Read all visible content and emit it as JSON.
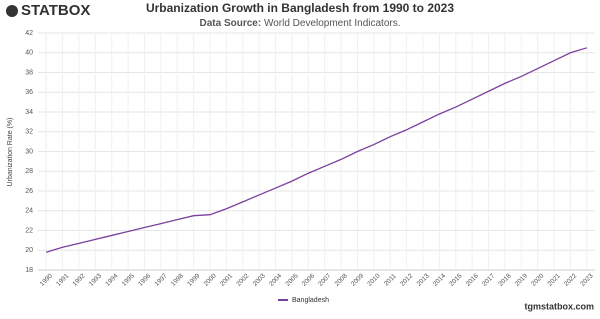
{
  "brand": "STATBOX",
  "footer": "tgmstatbox.com",
  "chart_data": {
    "type": "line",
    "title": "Urbanization Growth in Bangladesh from 1990 to 2023",
    "subtitle_label": "Data Source:",
    "subtitle": "World Development Indicators.",
    "y_label": "Urbanization Rate (%)",
    "categories": [
      "1990",
      "1991",
      "1992",
      "1993",
      "1994",
      "1995",
      "1996",
      "1997",
      "1998",
      "1999",
      "2000",
      "2001",
      "2002",
      "2003",
      "2004",
      "2005",
      "2006",
      "2007",
      "2008",
      "2009",
      "2010",
      "2011",
      "2012",
      "2013",
      "2014",
      "2015",
      "2016",
      "2017",
      "2018",
      "2019",
      "2020",
      "2021",
      "2022",
      "2023"
    ],
    "series": [
      {
        "name": "Bangladesh",
        "color": "#7b3f9e",
        "values": [
          19.8,
          20.3,
          20.7,
          21.1,
          21.5,
          21.9,
          22.3,
          22.7,
          23.1,
          23.5,
          23.6,
          24.2,
          24.9,
          25.6,
          26.3,
          27.0,
          27.8,
          28.5,
          29.2,
          30.0,
          30.7,
          31.5,
          32.2,
          33.0,
          33.8,
          34.5,
          35.3,
          36.1,
          36.9,
          37.6,
          38.4,
          39.2,
          40.0,
          40.5
        ]
      }
    ],
    "ylim": [
      18,
      42
    ],
    "yticks": [
      18,
      20,
      22,
      24,
      26,
      28,
      30,
      32,
      34,
      36,
      38,
      40,
      42
    ],
    "grid": true
  }
}
